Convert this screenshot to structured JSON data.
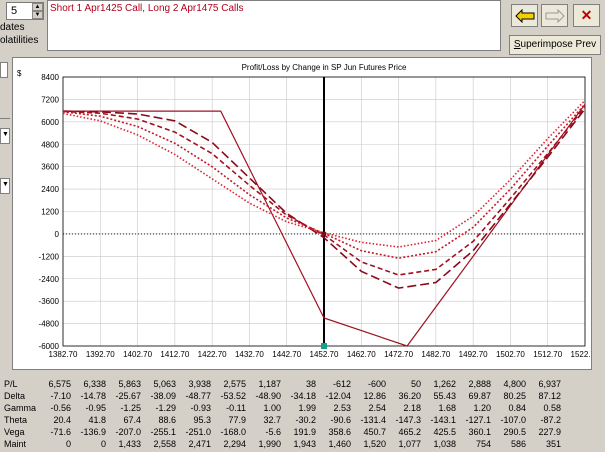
{
  "left_panel": {
    "spinner_value": "5",
    "dates_label": "dates",
    "volatilities_label": "olatilities"
  },
  "strategy": {
    "text": "Short 1 Apr1425 Call, Long 2 Apr1475 Calls"
  },
  "toolbar": {
    "back_icon": "yellow-left-arrow-icon",
    "forward_icon": "gray-right-arrow-icon",
    "close_icon": "red-x-icon",
    "superimpose_label": "Superimpose Prev",
    "superimpose_accel": "S",
    "superimpose_rest": "uperimpose Prev"
  },
  "chart_data": {
    "type": "line",
    "title": "Profit/Loss by Change in SP Jun Futures Price",
    "ylabel": "$",
    "xlabel": "",
    "ylim": [
      -6000,
      8400
    ],
    "xlim": [
      1382.7,
      1522.7
    ],
    "y_ticks": [
      "8400",
      "7200",
      "6000",
      "4800",
      "3600",
      "2400",
      "1200",
      "0",
      "-1200",
      "-2400",
      "-3600",
      "-4800",
      "-6000"
    ],
    "x_ticks": [
      "1382.70",
      "1392.70",
      "1402.70",
      "1412.70",
      "1422.70",
      "1432.70",
      "1442.70",
      "1452.70",
      "1462.70",
      "1472.70",
      "1482.70",
      "1492.70",
      "1502.70",
      "1512.70",
      "1522.70"
    ],
    "current_price": 1452.7,
    "zero_line": "dotted",
    "series": [
      {
        "style": "solid",
        "color": "#a01020",
        "x": [
          1382.7,
          1425,
          1452.7,
          1475,
          1522.7
        ],
        "y": [
          6575,
          6575,
          -4500,
          -6000,
          6937
        ]
      },
      {
        "style": "long-dash",
        "color": "#8b0a1a",
        "x": [
          1382.7,
          1392.7,
          1402.7,
          1412.7,
          1422.7,
          1432.7,
          1442.7,
          1452.7,
          1462.7,
          1472.7,
          1482.7,
          1492.7,
          1502.7,
          1512.7,
          1522.7
        ],
        "y": [
          6575,
          6530,
          6420,
          6050,
          4900,
          3000,
          1100,
          -200,
          -2000,
          -2900,
          -2600,
          -900,
          1600,
          4100,
          6700
        ]
      },
      {
        "style": "medium-dash",
        "color": "#a31020",
        "x": [
          1382.7,
          1392.7,
          1402.7,
          1412.7,
          1422.7,
          1432.7,
          1442.7,
          1452.7,
          1462.7,
          1472.7,
          1482.7,
          1492.7,
          1502.7,
          1512.7,
          1522.7
        ],
        "y": [
          6560,
          6460,
          6150,
          5450,
          4300,
          2600,
          1000,
          -50,
          -1500,
          -2200,
          -1900,
          -400,
          1900,
          4300,
          6800
        ]
      },
      {
        "style": "dotted",
        "color": "#c81828",
        "x": [
          1382.7,
          1392.7,
          1402.7,
          1412.7,
          1422.7,
          1432.7,
          1442.7,
          1452.7,
          1462.7,
          1472.7,
          1482.7,
          1492.7,
          1502.7,
          1512.7,
          1522.7
        ],
        "y": [
          6540,
          6300,
          5750,
          4850,
          3600,
          2100,
          850,
          30,
          -900,
          -1300,
          -950,
          350,
          2400,
          4700,
          6950
        ]
      },
      {
        "style": "fine-dotted",
        "color": "#e02030",
        "x": [
          1382.7,
          1392.7,
          1402.7,
          1412.7,
          1422.7,
          1432.7,
          1442.7,
          1452.7,
          1462.7,
          1472.7,
          1482.7,
          1492.7,
          1502.7,
          1512.7,
          1522.7
        ],
        "y": [
          6450,
          6050,
          5300,
          4250,
          2950,
          1650,
          650,
          60,
          -450,
          -700,
          -350,
          950,
          2900,
          5100,
          7150
        ]
      }
    ]
  },
  "stats": {
    "rows": [
      {
        "label": "P/L",
        "values": [
          "6,575",
          "6,338",
          "5,863",
          "5,063",
          "3,938",
          "2,575",
          "1,187",
          "38",
          "-612",
          "-600",
          "50",
          "1,262",
          "2,888",
          "4,800",
          "6,937"
        ]
      },
      {
        "label": "Delta",
        "values": [
          "-7.10",
          "-14.78",
          "-25.67",
          "-38.09",
          "-48.77",
          "-53.52",
          "-48.90",
          "-34.18",
          "-12.04",
          "12.86",
          "36.20",
          "55.43",
          "69.87",
          "80.25",
          "87.12"
        ]
      },
      {
        "label": "Gamma",
        "values": [
          "-0.56",
          "-0.95",
          "-1.25",
          "-1.29",
          "-0.93",
          "-0.11",
          "1.00",
          "1.99",
          "2.53",
          "2.54",
          "2.18",
          "1.68",
          "1.20",
          "0.84",
          "0.58"
        ]
      },
      {
        "label": "Theta",
        "values": [
          "20.4",
          "41.8",
          "67.4",
          "88.6",
          "95.3",
          "77.9",
          "32.7",
          "-30.2",
          "-90.6",
          "-131.4",
          "-147.3",
          "-143.1",
          "-127.1",
          "-107.0",
          "-87.2"
        ]
      },
      {
        "label": "Vega",
        "values": [
          "-71.6",
          "-136.9",
          "-207.0",
          "-255.1",
          "-251.0",
          "-168.0",
          "-5.6",
          "191.9",
          "358.6",
          "450.7",
          "465.2",
          "425.5",
          "360.1",
          "290.5",
          "227.9"
        ]
      },
      {
        "label": "Maint",
        "values": [
          "0",
          "0",
          "1,433",
          "2,558",
          "2,471",
          "2,294",
          "1,990",
          "1,943",
          "1,460",
          "1,520",
          "1,077",
          "1,038",
          "754",
          "586",
          "351"
        ]
      }
    ]
  }
}
